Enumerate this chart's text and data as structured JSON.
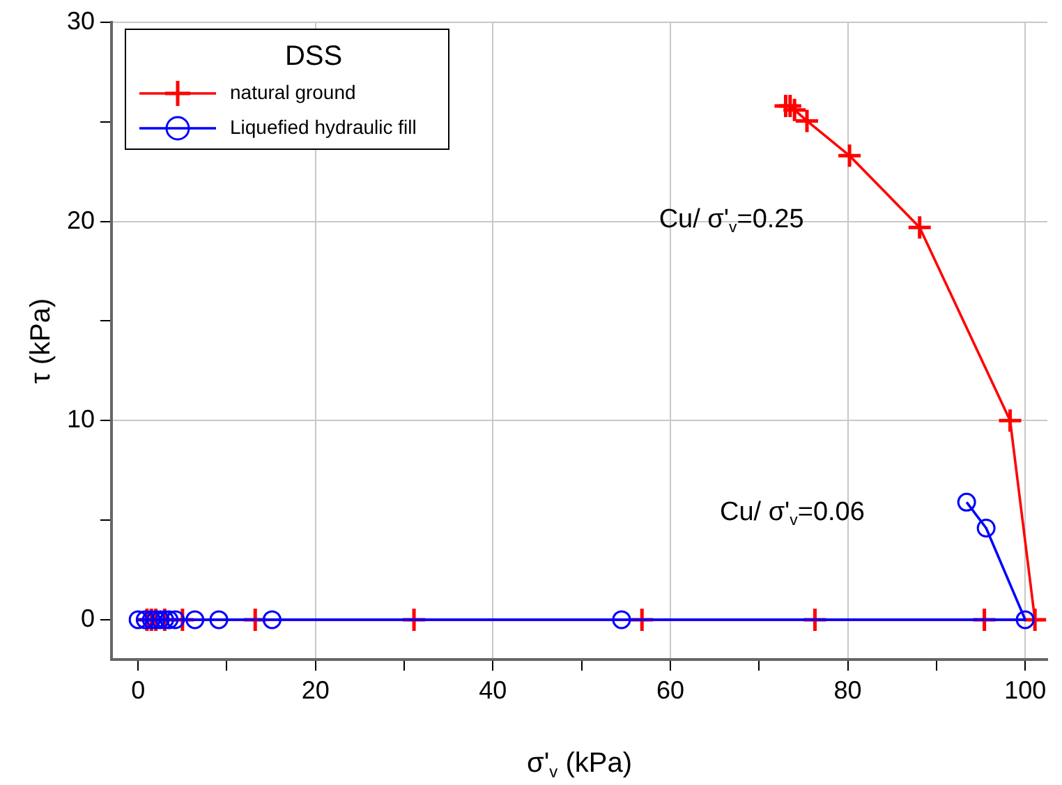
{
  "chart_data": {
    "type": "line",
    "xlabel": "σ'$_{v}$ (kPa)",
    "ylabel": "τ (kPa)",
    "legend_title": "DSS",
    "legend": "top left",
    "grid": true,
    "xlim": [
      -3,
      102.5
    ],
    "ylim": [
      -2,
      30
    ],
    "xticks": [
      0,
      {
        "value": 10,
        "label": null
      },
      20,
      {
        "value": 30,
        "label": null
      },
      40,
      {
        "value": 50,
        "label": null
      },
      60,
      {
        "value": 70,
        "label": null
      },
      80,
      {
        "value": 90,
        "label": null
      },
      100
    ],
    "yticks": [
      0,
      {
        "value": 5,
        "label": null
      },
      10,
      {
        "value": 15,
        "label": null
      },
      20,
      {
        "value": 25,
        "label": null
      },
      30
    ],
    "annotations": [
      "Cu/ σ'$_{v}$=0.25",
      "Cu/ σ'$_{v}$=0.06"
    ],
    "series": [
      {
        "name": "natural ground",
        "color": "#ff0000",
        "marker": "cross",
        "x": [
          1,
          1.5,
          2,
          3,
          5,
          13.2,
          31.1,
          56.8,
          76.3,
          95.4,
          101.1,
          98.3,
          88.1,
          80.2,
          75.4,
          74,
          73.5,
          73
        ],
        "values": [
          0,
          0,
          0,
          0,
          0,
          0,
          0,
          0,
          0,
          0,
          0,
          10,
          19.7,
          23.3,
          25.05,
          25.6,
          25.8,
          25.8
        ]
      },
      {
        "name": "Liquefied hydraulic fill",
        "color": "#0000ff",
        "marker": "circle",
        "x": [
          0,
          0.8,
          1.5,
          2,
          2.5,
          3,
          3.5,
          4.2,
          6.4,
          9.1,
          15.1,
          54.5,
          100,
          95.6,
          93.4
        ],
        "values": [
          0,
          0,
          0,
          0,
          0,
          0,
          0,
          0,
          0,
          0,
          0,
          0,
          0,
          4.6,
          5.9
        ]
      }
    ]
  }
}
